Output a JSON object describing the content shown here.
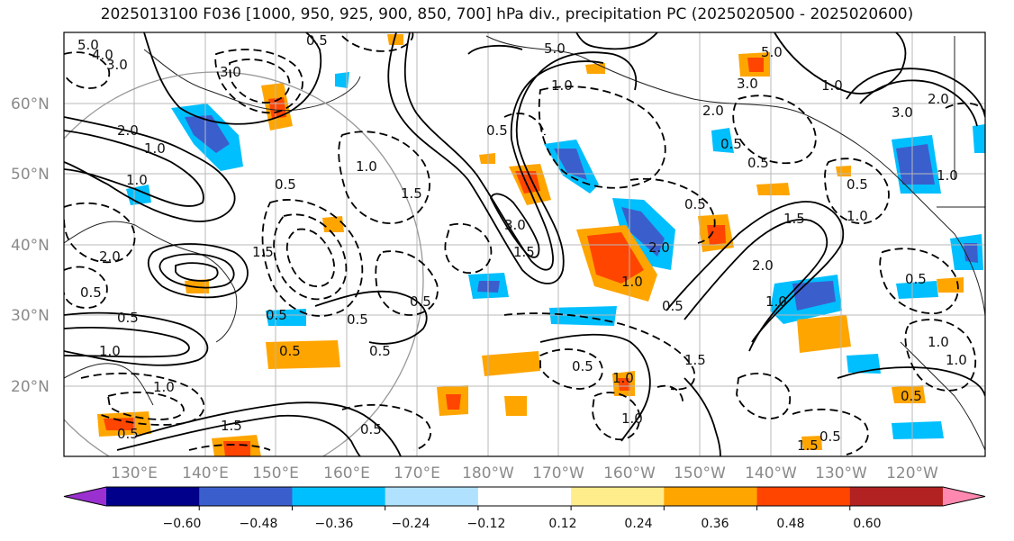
{
  "title": "2025013100 F036 [1000, 950, 925, 900, 850, 700] hPa div., precipitation PC (2025020500 - 2025020600)",
  "lat_labels": [
    "60°N",
    "50°N",
    "40°N",
    "30°N",
    "20°N"
  ],
  "lon_labels": [
    "130°E",
    "140°E",
    "150°E",
    "160°E",
    "170°E",
    "180°W",
    "170°W",
    "160°W",
    "150°W",
    "140°W",
    "130°W",
    "120°W"
  ],
  "colorbar": {
    "colors": [
      "#9b30d0",
      "#00008b",
      "#3a5fcd",
      "#00bfff",
      "#b0e2ff",
      "#ffffff",
      "#ffec8b",
      "#ffa500",
      "#ff4500",
      "#b22222",
      "#ff88b0"
    ],
    "tick_labels": [
      "−0.60",
      "−0.48",
      "−0.36",
      "−0.24",
      "−0.12",
      "0.12",
      "0.24",
      "0.36",
      "0.48",
      "0.60"
    ]
  },
  "contour_labels": [
    "5.0",
    "4.0",
    "3.0",
    "0.5",
    "5.0",
    "3.0",
    "1.0",
    "2.0",
    "1.0",
    "0.5",
    "1.0",
    "1.5",
    "0.5",
    "1.0",
    "3.0",
    "2.0",
    "1.0",
    "5.0",
    "0.5",
    "3.0",
    "1.0",
    "0.5",
    "2.0",
    "0.5",
    "1.5",
    "3.0",
    "2.0",
    "1.0",
    "0.5",
    "1.0",
    "0.5",
    "1.0",
    "1.0",
    "1.0",
    "1.5",
    "2.0",
    "0.5",
    "0.5",
    "0.5",
    "0.5",
    "1.5",
    "0.5",
    "1.0",
    "0.5",
    "1.0",
    "0.5",
    "1.5",
    "0.5",
    "1.5",
    "0.5",
    "0.5",
    "1.0",
    "2.0",
    "0.5",
    "1.5",
    "0.5",
    "1.0",
    "0.5"
  ]
}
